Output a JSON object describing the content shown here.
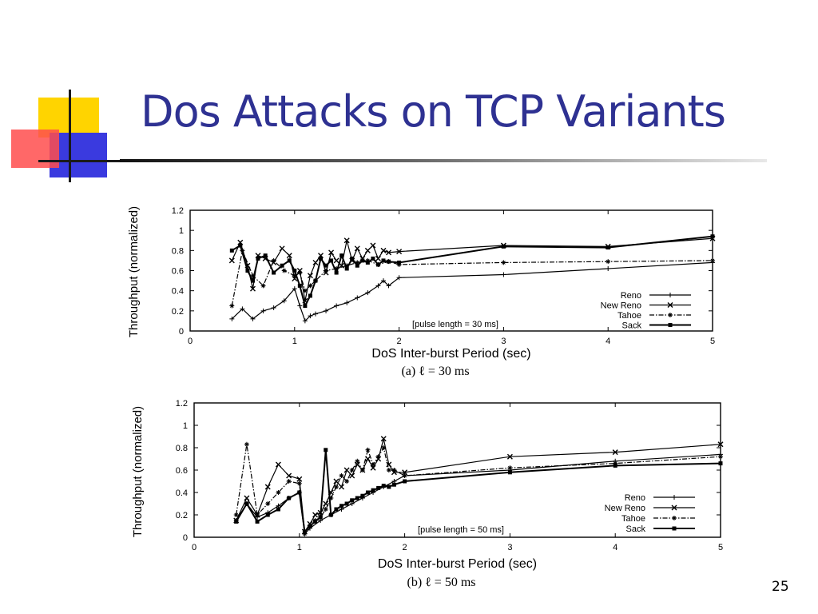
{
  "slide": {
    "title": "Dos Attacks on TCP Variants",
    "number": "25",
    "title_color": "#2e3192"
  },
  "chart_data": [
    {
      "type": "line",
      "caption": "(a) ℓ = 30 ms",
      "annotation": "[pulse length = 30 ms]",
      "xlabel": "DoS Inter-burst Period (sec)",
      "ylabel": "Throughput (normalized)",
      "xlim": [
        0,
        5
      ],
      "ylim": [
        0,
        1.2
      ],
      "xticks": [
        "0",
        "1",
        "2",
        "3",
        "4",
        "5"
      ],
      "yticks": [
        "0",
        "0.2",
        "0.4",
        "0.6",
        "0.8",
        "1",
        "1.2"
      ],
      "legend_position": "bottom-right",
      "grid": false,
      "series": [
        {
          "name": "Reno",
          "marker": "plus",
          "dash": "solid",
          "x": [
            0.4,
            0.5,
            0.6,
            0.7,
            0.8,
            0.9,
            1.0,
            1.05,
            1.1,
            1.15,
            1.2,
            1.3,
            1.4,
            1.5,
            1.6,
            1.7,
            1.8,
            1.85,
            1.9,
            2.0,
            3.0,
            4.0,
            5.0
          ],
          "y": [
            0.12,
            0.22,
            0.12,
            0.2,
            0.23,
            0.3,
            0.42,
            0.25,
            0.1,
            0.15,
            0.17,
            0.2,
            0.25,
            0.28,
            0.33,
            0.38,
            0.45,
            0.5,
            0.45,
            0.53,
            0.56,
            0.62,
            0.68
          ]
        },
        {
          "name": "New Reno",
          "marker": "x",
          "dash": "solid",
          "x": [
            0.4,
            0.48,
            0.55,
            0.6,
            0.65,
            0.72,
            0.8,
            0.88,
            0.95,
            1.0,
            1.05,
            1.1,
            1.15,
            1.2,
            1.25,
            1.3,
            1.35,
            1.4,
            1.45,
            1.5,
            1.55,
            1.6,
            1.65,
            1.7,
            1.75,
            1.8,
            1.85,
            1.9,
            2.0,
            3.0,
            4.0,
            5.0
          ],
          "y": [
            0.7,
            0.88,
            0.65,
            0.42,
            0.75,
            0.72,
            0.68,
            0.82,
            0.75,
            0.52,
            0.6,
            0.3,
            0.55,
            0.68,
            0.75,
            0.58,
            0.78,
            0.7,
            0.65,
            0.9,
            0.7,
            0.82,
            0.72,
            0.8,
            0.85,
            0.72,
            0.8,
            0.78,
            0.79,
            0.85,
            0.84,
            0.92
          ]
        },
        {
          "name": "Tahoe",
          "marker": "star",
          "dash": "dashdot",
          "x": [
            0.4,
            0.5,
            0.6,
            0.7,
            0.8,
            0.9,
            1.0,
            1.05,
            1.1,
            1.15,
            1.2,
            1.3,
            1.4,
            1.5,
            1.6,
            1.7,
            1.8,
            1.9,
            2.0,
            3.0,
            4.0,
            5.0
          ],
          "y": [
            0.25,
            0.8,
            0.55,
            0.45,
            0.7,
            0.6,
            0.55,
            0.58,
            0.4,
            0.45,
            0.5,
            0.6,
            0.62,
            0.65,
            0.68,
            0.7,
            0.66,
            0.69,
            0.66,
            0.68,
            0.69,
            0.7
          ]
        },
        {
          "name": "Sack",
          "marker": "square",
          "dash": "solid",
          "x": [
            0.4,
            0.48,
            0.55,
            0.6,
            0.65,
            0.72,
            0.8,
            0.88,
            0.95,
            1.0,
            1.05,
            1.1,
            1.15,
            1.2,
            1.25,
            1.3,
            1.35,
            1.4,
            1.45,
            1.5,
            1.55,
            1.6,
            1.65,
            1.7,
            1.75,
            1.8,
            1.85,
            1.9,
            2.0,
            3.0,
            4.0,
            5.0
          ],
          "y": [
            0.8,
            0.85,
            0.6,
            0.5,
            0.72,
            0.75,
            0.58,
            0.65,
            0.7,
            0.6,
            0.45,
            0.25,
            0.35,
            0.5,
            0.72,
            0.65,
            0.7,
            0.58,
            0.75,
            0.62,
            0.72,
            0.65,
            0.7,
            0.68,
            0.72,
            0.66,
            0.7,
            0.69,
            0.68,
            0.84,
            0.83,
            0.94
          ]
        }
      ]
    },
    {
      "type": "line",
      "caption": "(b) ℓ = 50 ms",
      "annotation": "[pulse length = 50 ms]",
      "xlabel": "DoS Inter-burst Period (sec)",
      "ylabel": "Throughput (normalized)",
      "xlim": [
        0,
        5
      ],
      "ylim": [
        0,
        1.2
      ],
      "xticks": [
        "0",
        "1",
        "2",
        "3",
        "4",
        "5"
      ],
      "yticks": [
        "0",
        "0.2",
        "0.4",
        "0.6",
        "0.8",
        "1",
        "1.2"
      ],
      "legend_position": "bottom-right",
      "grid": false,
      "series": [
        {
          "name": "Reno",
          "marker": "plus",
          "dash": "solid",
          "x": [
            0.4,
            0.5,
            0.6,
            0.7,
            0.8,
            0.9,
            1.0,
            1.05,
            1.1,
            1.2,
            1.3,
            1.4,
            1.5,
            1.6,
            1.7,
            1.8,
            1.9,
            2.0,
            3.0,
            4.0,
            5.0
          ],
          "y": [
            0.15,
            0.3,
            0.18,
            0.22,
            0.28,
            0.35,
            0.4,
            0.03,
            0.08,
            0.15,
            0.2,
            0.25,
            0.3,
            0.35,
            0.4,
            0.45,
            0.5,
            0.55,
            0.6,
            0.68,
            0.74
          ]
        },
        {
          "name": "New Reno",
          "marker": "x",
          "dash": "solid",
          "x": [
            0.4,
            0.5,
            0.6,
            0.7,
            0.8,
            0.9,
            1.0,
            1.05,
            1.1,
            1.15,
            1.2,
            1.25,
            1.3,
            1.35,
            1.4,
            1.45,
            1.5,
            1.55,
            1.6,
            1.65,
            1.7,
            1.75,
            1.8,
            1.85,
            1.9,
            2.0,
            3.0,
            4.0,
            5.0
          ],
          "y": [
            0.15,
            0.35,
            0.2,
            0.45,
            0.65,
            0.55,
            0.52,
            0.05,
            0.12,
            0.2,
            0.22,
            0.3,
            0.4,
            0.5,
            0.45,
            0.6,
            0.55,
            0.65,
            0.6,
            0.7,
            0.62,
            0.7,
            0.88,
            0.65,
            0.58,
            0.58,
            0.72,
            0.76,
            0.83
          ]
        },
        {
          "name": "Tahoe",
          "marker": "star",
          "dash": "dashdot",
          "x": [
            0.4,
            0.5,
            0.6,
            0.7,
            0.8,
            0.9,
            1.0,
            1.05,
            1.1,
            1.15,
            1.2,
            1.25,
            1.3,
            1.35,
            1.4,
            1.45,
            1.5,
            1.55,
            1.6,
            1.65,
            1.7,
            1.75,
            1.8,
            1.85,
            1.9,
            2.0,
            3.0,
            4.0,
            5.0
          ],
          "y": [
            0.2,
            0.83,
            0.2,
            0.3,
            0.4,
            0.5,
            0.48,
            0.03,
            0.1,
            0.15,
            0.18,
            0.25,
            0.35,
            0.45,
            0.55,
            0.5,
            0.6,
            0.68,
            0.6,
            0.78,
            0.65,
            0.72,
            0.8,
            0.6,
            0.6,
            0.55,
            0.62,
            0.66,
            0.72
          ]
        },
        {
          "name": "Sack",
          "marker": "square",
          "dash": "solid",
          "x": [
            0.4,
            0.5,
            0.6,
            0.7,
            0.8,
            0.9,
            1.0,
            1.05,
            1.1,
            1.15,
            1.2,
            1.25,
            1.3,
            1.35,
            1.4,
            1.45,
            1.5,
            1.55,
            1.6,
            1.65,
            1.7,
            1.75,
            1.8,
            1.85,
            1.9,
            2.0,
            3.0,
            4.0,
            5.0
          ],
          "y": [
            0.14,
            0.3,
            0.14,
            0.2,
            0.25,
            0.35,
            0.4,
            0.05,
            0.1,
            0.14,
            0.18,
            0.78,
            0.2,
            0.25,
            0.28,
            0.3,
            0.33,
            0.35,
            0.37,
            0.4,
            0.42,
            0.44,
            0.46,
            0.45,
            0.47,
            0.5,
            0.58,
            0.64,
            0.66
          ]
        }
      ]
    }
  ]
}
